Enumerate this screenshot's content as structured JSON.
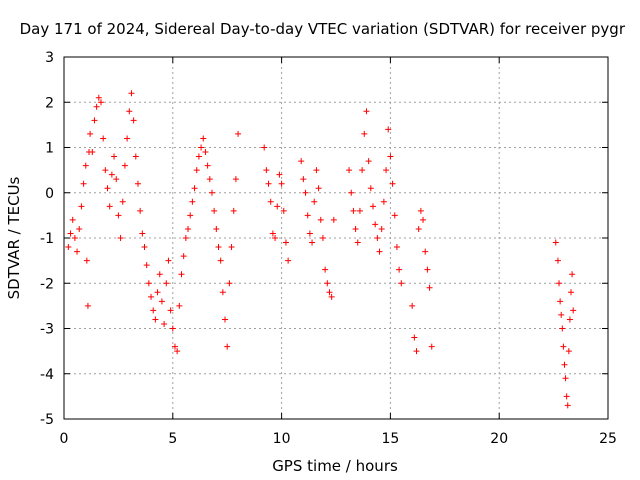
{
  "chart_data": {
    "type": "scatter",
    "title": "Day 171 of 2024, Sidereal Day-to-day VTEC variation (SDTVAR) for receiver pygr",
    "xlabel": "GPS time / hours",
    "ylabel": "SDTVAR / TECUs",
    "xlim": [
      0,
      25
    ],
    "ylim": [
      -5,
      3
    ],
    "xticks": [
      0,
      5,
      10,
      15,
      20,
      25
    ],
    "yticks": [
      -5,
      -4,
      -3,
      -2,
      -1,
      0,
      1,
      2,
      3
    ],
    "grid": true,
    "marker": "+",
    "marker_color": "#ff0000",
    "series": [
      {
        "name": "SDTVAR",
        "points": [
          [
            0.2,
            -1.2
          ],
          [
            0.3,
            -0.9
          ],
          [
            0.4,
            -0.6
          ],
          [
            0.5,
            -1.0
          ],
          [
            0.6,
            -1.3
          ],
          [
            0.7,
            -0.8
          ],
          [
            0.8,
            -0.3
          ],
          [
            0.9,
            0.2
          ],
          [
            1.0,
            0.6
          ],
          [
            1.05,
            -1.5
          ],
          [
            1.1,
            -2.5
          ],
          [
            1.15,
            0.9
          ],
          [
            1.2,
            1.3
          ],
          [
            1.3,
            0.9
          ],
          [
            1.4,
            1.6
          ],
          [
            1.5,
            1.9
          ],
          [
            1.6,
            2.1
          ],
          [
            1.7,
            2.0
          ],
          [
            1.8,
            1.2
          ],
          [
            1.9,
            0.5
          ],
          [
            2.0,
            0.1
          ],
          [
            2.1,
            -0.3
          ],
          [
            2.2,
            0.4
          ],
          [
            2.3,
            0.8
          ],
          [
            2.4,
            0.3
          ],
          [
            2.5,
            -0.5
          ],
          [
            2.6,
            -1.0
          ],
          [
            2.7,
            -0.2
          ],
          [
            2.8,
            0.6
          ],
          [
            2.9,
            1.2
          ],
          [
            3.0,
            1.8
          ],
          [
            3.1,
            2.2
          ],
          [
            3.2,
            1.6
          ],
          [
            3.3,
            0.8
          ],
          [
            3.4,
            0.2
          ],
          [
            3.5,
            -0.4
          ],
          [
            3.6,
            -0.9
          ],
          [
            3.7,
            -1.2
          ],
          [
            3.8,
            -1.6
          ],
          [
            3.9,
            -2.0
          ],
          [
            4.0,
            -2.3
          ],
          [
            4.1,
            -2.6
          ],
          [
            4.2,
            -2.8
          ],
          [
            4.3,
            -2.2
          ],
          [
            4.4,
            -1.8
          ],
          [
            4.5,
            -2.4
          ],
          [
            4.6,
            -2.9
          ],
          [
            4.7,
            -2.0
          ],
          [
            4.8,
            -1.5
          ],
          [
            4.9,
            -2.6
          ],
          [
            5.0,
            -3.0
          ],
          [
            5.1,
            -3.4
          ],
          [
            5.2,
            -3.5
          ],
          [
            5.3,
            -2.5
          ],
          [
            5.4,
            -1.8
          ],
          [
            5.5,
            -1.4
          ],
          [
            5.6,
            -1.0
          ],
          [
            5.7,
            -0.8
          ],
          [
            5.8,
            -0.5
          ],
          [
            5.9,
            -0.2
          ],
          [
            6.0,
            0.1
          ],
          [
            6.1,
            0.5
          ],
          [
            6.2,
            0.8
          ],
          [
            6.3,
            1.0
          ],
          [
            6.4,
            1.2
          ],
          [
            6.5,
            0.9
          ],
          [
            6.6,
            0.6
          ],
          [
            6.7,
            0.3
          ],
          [
            6.8,
            0.0
          ],
          [
            6.9,
            -0.4
          ],
          [
            7.0,
            -0.8
          ],
          [
            7.1,
            -1.2
          ],
          [
            7.2,
            -1.5
          ],
          [
            7.3,
            -2.2
          ],
          [
            7.4,
            -2.8
          ],
          [
            7.5,
            -3.4
          ],
          [
            7.6,
            -2.0
          ],
          [
            7.7,
            -1.2
          ],
          [
            7.8,
            -0.4
          ],
          [
            7.9,
            0.3
          ],
          [
            8.0,
            1.3
          ],
          [
            9.2,
            1.0
          ],
          [
            9.3,
            0.5
          ],
          [
            9.4,
            0.2
          ],
          [
            9.5,
            -0.2
          ],
          [
            9.6,
            -0.9
          ],
          [
            9.7,
            -1.0
          ],
          [
            9.8,
            -0.3
          ],
          [
            9.9,
            0.4
          ],
          [
            10.0,
            0.2
          ],
          [
            10.1,
            -0.4
          ],
          [
            10.2,
            -1.1
          ],
          [
            10.3,
            -1.5
          ],
          [
            10.9,
            0.7
          ],
          [
            11.0,
            0.3
          ],
          [
            11.1,
            0.0
          ],
          [
            11.2,
            -0.5
          ],
          [
            11.3,
            -0.9
          ],
          [
            11.4,
            -1.1
          ],
          [
            11.5,
            -0.2
          ],
          [
            11.6,
            0.5
          ],
          [
            11.7,
            0.1
          ],
          [
            11.8,
            -0.6
          ],
          [
            11.9,
            -1.0
          ],
          [
            12.0,
            -1.7
          ],
          [
            12.1,
            -2.0
          ],
          [
            12.2,
            -2.2
          ],
          [
            12.3,
            -2.3
          ],
          [
            12.4,
            -0.6
          ],
          [
            13.1,
            0.5
          ],
          [
            13.2,
            0.0
          ],
          [
            13.3,
            -0.4
          ],
          [
            13.4,
            -0.8
          ],
          [
            13.5,
            -1.1
          ],
          [
            13.6,
            -0.4
          ],
          [
            13.7,
            0.5
          ],
          [
            13.8,
            1.3
          ],
          [
            13.9,
            1.8
          ],
          [
            14.0,
            0.7
          ],
          [
            14.1,
            0.1
          ],
          [
            14.2,
            -0.3
          ],
          [
            14.3,
            -0.7
          ],
          [
            14.4,
            -1.0
          ],
          [
            14.5,
            -1.3
          ],
          [
            14.6,
            -0.8
          ],
          [
            14.7,
            -0.2
          ],
          [
            14.8,
            0.5
          ],
          [
            14.9,
            1.4
          ],
          [
            15.0,
            0.8
          ],
          [
            15.1,
            0.2
          ],
          [
            15.2,
            -0.5
          ],
          [
            15.3,
            -1.2
          ],
          [
            15.4,
            -1.7
          ],
          [
            15.5,
            -2.0
          ],
          [
            16.0,
            -2.5
          ],
          [
            16.1,
            -3.2
          ],
          [
            16.2,
            -3.5
          ],
          [
            16.3,
            -0.8
          ],
          [
            16.4,
            -0.4
          ],
          [
            16.5,
            -0.6
          ],
          [
            16.6,
            -1.3
          ],
          [
            16.7,
            -1.7
          ],
          [
            16.8,
            -2.1
          ],
          [
            16.9,
            -3.4
          ],
          [
            22.6,
            -1.1
          ],
          [
            22.7,
            -1.5
          ],
          [
            22.75,
            -2.0
          ],
          [
            22.8,
            -2.4
          ],
          [
            22.85,
            -2.7
          ],
          [
            22.9,
            -3.0
          ],
          [
            22.95,
            -3.4
          ],
          [
            23.0,
            -3.8
          ],
          [
            23.05,
            -4.1
          ],
          [
            23.1,
            -4.5
          ],
          [
            23.15,
            -4.7
          ],
          [
            23.2,
            -3.5
          ],
          [
            23.25,
            -2.8
          ],
          [
            23.3,
            -2.2
          ],
          [
            23.35,
            -1.8
          ],
          [
            23.4,
            -2.6
          ]
        ]
      }
    ]
  }
}
